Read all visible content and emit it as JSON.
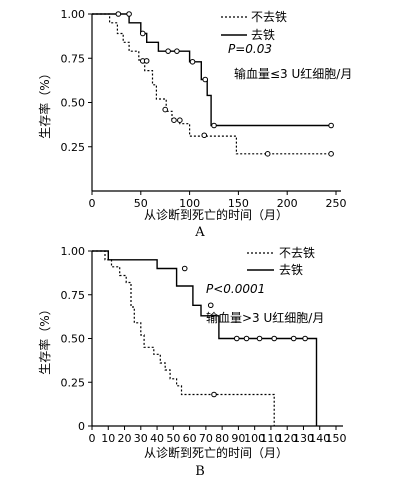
{
  "chart_data": [
    {
      "type": "line",
      "panel_label": "A",
      "xlabel": "从诊断到死亡的时间（月）",
      "ylabel": "生存率（%）",
      "xlim": [
        0,
        250
      ],
      "ylim": [
        0,
        1.0
      ],
      "x_ticks": [
        "0",
        "50",
        "100",
        "150",
        "200",
        "250"
      ],
      "y_ticks": [
        "0.25",
        "0.50",
        "0.75",
        "1.00"
      ],
      "annotations": [
        "P=0.03",
        "输血量≤3 U红细胞/月"
      ],
      "series": [
        {
          "name": "不去铁",
          "style": "dashed",
          "steps": [
            [
              0,
              1.0
            ],
            [
              18,
              1.0
            ],
            [
              18,
              0.95
            ],
            [
              26,
              0.95
            ],
            [
              26,
              0.89
            ],
            [
              32,
              0.89
            ],
            [
              32,
              0.84
            ],
            [
              38,
              0.84
            ],
            [
              38,
              0.79
            ],
            [
              48,
              0.79
            ],
            [
              48,
              0.74
            ],
            [
              54,
              0.74
            ],
            [
              54,
              0.68
            ],
            [
              62,
              0.68
            ],
            [
              62,
              0.6
            ],
            [
              66,
              0.6
            ],
            [
              66,
              0.52
            ],
            [
              76,
              0.52
            ],
            [
              76,
              0.45
            ],
            [
              82,
              0.45
            ],
            [
              82,
              0.4
            ],
            [
              90,
              0.4
            ],
            [
              90,
              0.38
            ],
            [
              100,
              0.38
            ],
            [
              100,
              0.31
            ],
            [
              148,
              0.31
            ],
            [
              148,
              0.21
            ],
            [
              245,
              0.21
            ]
          ],
          "censored": [
            [
              52,
              0.735
            ],
            [
              56,
              0.735
            ],
            [
              75,
              0.46
            ],
            [
              84,
              0.4
            ],
            [
              90,
              0.4
            ],
            [
              115,
              0.315
            ],
            [
              180,
              0.21
            ],
            [
              245,
              0.21
            ]
          ]
        },
        {
          "name": "去铁",
          "style": "solid",
          "steps": [
            [
              0,
              1.0
            ],
            [
              38,
              1.0
            ],
            [
              38,
              0.95
            ],
            [
              50,
              0.95
            ],
            [
              50,
              0.89
            ],
            [
              56,
              0.89
            ],
            [
              56,
              0.84
            ],
            [
              68,
              0.84
            ],
            [
              68,
              0.79
            ],
            [
              100,
              0.79
            ],
            [
              100,
              0.73
            ],
            [
              112,
              0.73
            ],
            [
              112,
              0.63
            ],
            [
              118,
              0.63
            ],
            [
              118,
              0.54
            ],
            [
              122,
              0.54
            ],
            [
              122,
              0.37
            ],
            [
              245,
              0.37
            ]
          ],
          "censored": [
            [
              27,
              1.0
            ],
            [
              38,
              1.0
            ],
            [
              52,
              0.89
            ],
            [
              78,
              0.79
            ],
            [
              87,
              0.79
            ],
            [
              103,
              0.73
            ],
            [
              116,
              0.63
            ],
            [
              125,
              0.37
            ],
            [
              245,
              0.37
            ]
          ]
        }
      ]
    },
    {
      "type": "line",
      "panel_label": "B",
      "xlabel": "从诊断到死亡的时间（月）",
      "ylabel": "生存率（%）",
      "xlim": [
        0,
        150
      ],
      "ylim": [
        0,
        1.0
      ],
      "x_ticks": [
        "0",
        "10",
        "20",
        "30",
        "40",
        "50",
        "60",
        "70",
        "80",
        "90",
        "100",
        "110",
        "120",
        "130",
        "140",
        "150"
      ],
      "y_ticks": [
        "0",
        "0.25",
        "0.50",
        "0.75",
        "1.00"
      ],
      "annotations": [
        "P<0.0001",
        "输血量>3 U红细胞/月"
      ],
      "series": [
        {
          "name": "不去铁",
          "style": "dashed",
          "steps": [
            [
              0,
              1.0
            ],
            [
              8,
              1.0
            ],
            [
              8,
              0.95
            ],
            [
              12,
              0.95
            ],
            [
              12,
              0.91
            ],
            [
              17,
              0.91
            ],
            [
              17,
              0.86
            ],
            [
              21,
              0.86
            ],
            [
              21,
              0.82
            ],
            [
              24,
              0.82
            ],
            [
              24,
              0.68
            ],
            [
              26,
              0.68
            ],
            [
              26,
              0.59
            ],
            [
              30,
              0.59
            ],
            [
              30,
              0.52
            ],
            [
              32,
              0.52
            ],
            [
              32,
              0.45
            ],
            [
              38,
              0.45
            ],
            [
              38,
              0.41
            ],
            [
              42,
              0.41
            ],
            [
              42,
              0.36
            ],
            [
              45,
              0.36
            ],
            [
              45,
              0.32
            ],
            [
              48,
              0.32
            ],
            [
              48,
              0.27
            ],
            [
              52,
              0.27
            ],
            [
              52,
              0.23
            ],
            [
              55,
              0.23
            ],
            [
              55,
              0.18
            ],
            [
              112,
              0.18
            ],
            [
              112,
              0.0
            ]
          ],
          "censored": [
            [
              75,
              0.18
            ]
          ]
        },
        {
          "name": "去铁",
          "style": "solid",
          "steps": [
            [
              0,
              1.0
            ],
            [
              10,
              1.0
            ],
            [
              10,
              0.95
            ],
            [
              40,
              0.95
            ],
            [
              40,
              0.9
            ],
            [
              52,
              0.9
            ],
            [
              52,
              0.8
            ],
            [
              62,
              0.8
            ],
            [
              62,
              0.69
            ],
            [
              67,
              0.69
            ],
            [
              67,
              0.63
            ],
            [
              78,
              0.63
            ],
            [
              78,
              0.5
            ],
            [
              138,
              0.5
            ],
            [
              138,
              0.0
            ]
          ],
          "censored": [
            [
              57,
              0.9
            ],
            [
              73,
              0.69
            ],
            [
              89,
              0.5
            ],
            [
              95,
              0.5
            ],
            [
              103,
              0.5
            ],
            [
              112,
              0.5
            ],
            [
              124,
              0.5
            ],
            [
              131,
              0.5
            ]
          ]
        }
      ]
    }
  ]
}
